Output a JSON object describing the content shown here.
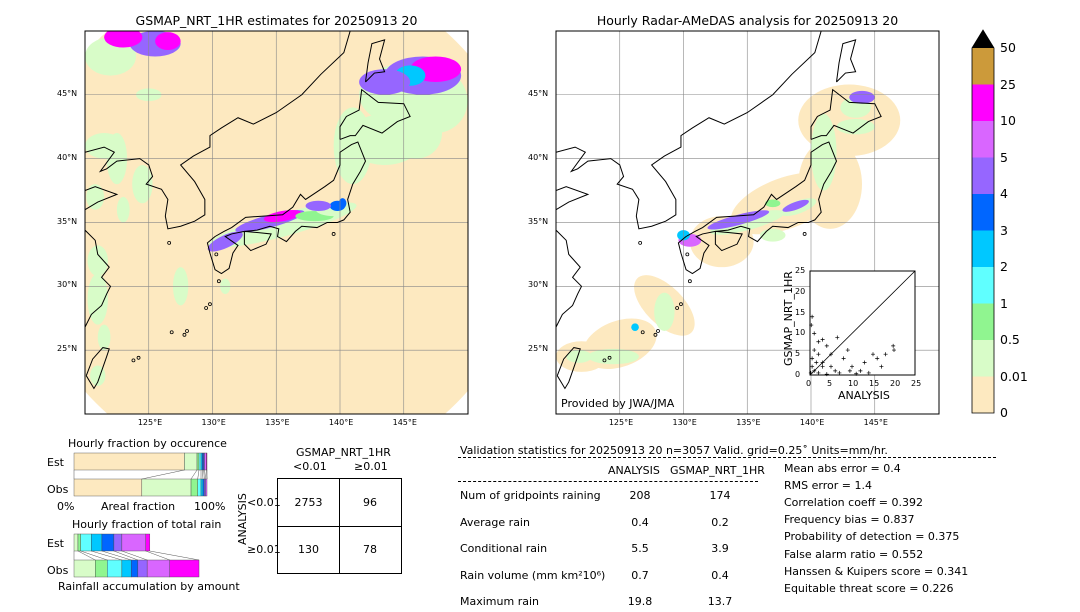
{
  "left_map": {
    "title": "GSMAP_NRT_1HR estimates for 20250913 20",
    "lon_ticks": [
      "125°E",
      "130°E",
      "135°E",
      "140°E",
      "145°E"
    ],
    "lat_ticks": [
      "45°N",
      "40°N",
      "35°N",
      "30°N",
      "25°N"
    ],
    "extent": {
      "lon": [
        120,
        150
      ],
      "lat": [
        20,
        50
      ]
    }
  },
  "right_map": {
    "title": "Hourly Radar-AMeDAS analysis for 20250913 20",
    "lon_ticks": [
      "125°E",
      "130°E",
      "135°E",
      "140°E",
      "145°E"
    ],
    "lat_ticks": [
      "45°N",
      "40°N",
      "35°N",
      "30°N",
      "25°N"
    ],
    "credit": "Provided by JWA/JMA"
  },
  "colorbar": {
    "labels": [
      "0",
      "0.01",
      "0.5",
      "1",
      "2",
      "3",
      "4",
      "5",
      "10",
      "25",
      "50"
    ],
    "colors": [
      "#fde9c0",
      "#d8fcc8",
      "#90f590",
      "#60ffff",
      "#00c8ff",
      "#0066ff",
      "#9666ff",
      "#d966ff",
      "#ff00ff",
      "#cc9a3a"
    ],
    "extend_color": "#000000"
  },
  "chart_data": [
    {
      "type": "scatter",
      "xlabel": "ANALYSIS",
      "ylabel": "GSMAP_NRT_1HR",
      "xlim": [
        0,
        25
      ],
      "ylim": [
        0,
        25
      ],
      "ticks": [
        "0",
        "5",
        "10",
        "15",
        "20",
        "25"
      ],
      "points": [
        [
          0.5,
          14
        ],
        [
          0.3,
          12
        ],
        [
          1,
          10
        ],
        [
          2,
          8
        ],
        [
          3,
          8.5
        ],
        [
          4,
          7
        ],
        [
          1,
          6
        ],
        [
          2,
          5
        ],
        [
          0.5,
          4
        ],
        [
          1.5,
          3
        ],
        [
          3,
          2
        ],
        [
          5,
          2
        ],
        [
          6,
          1
        ],
        [
          8,
          4
        ],
        [
          9,
          6
        ],
        [
          10,
          2
        ],
        [
          12,
          1
        ],
        [
          14,
          0.5
        ],
        [
          15,
          5
        ],
        [
          16,
          4
        ],
        [
          18,
          5
        ],
        [
          19.8,
          7
        ],
        [
          17,
          2
        ],
        [
          11,
          0.3
        ],
        [
          7,
          0.5
        ],
        [
          4,
          0.2
        ],
        [
          2,
          0.5
        ],
        [
          1,
          1
        ],
        [
          0.5,
          2
        ],
        [
          0.2,
          0.5
        ],
        [
          3,
          3
        ],
        [
          5,
          5
        ],
        [
          6.5,
          9
        ],
        [
          13,
          3
        ],
        [
          9.5,
          1
        ],
        [
          20,
          6
        ]
      ]
    },
    {
      "type": "bar",
      "title": "Hourly fraction by occurence",
      "xlabel": "Areal fraction",
      "x_ticks": [
        "0%",
        "100%"
      ],
      "categories": [
        "Est",
        "Obs"
      ],
      "segments_percent": {
        "Est": [
          83,
          9.5,
          1.5,
          1.5,
          1,
          1,
          0.7,
          1.3,
          0.5
        ],
        "Obs": [
          51,
          37,
          5,
          2.5,
          1.5,
          1,
          1,
          1,
          0
        ]
      }
    },
    {
      "type": "bar",
      "title": "Hourly fraction of total rain",
      "xlabel": "Rainfall accumulation by amount",
      "categories": [
        "Est",
        "Obs"
      ],
      "segments_percent": {
        "Est": [
          3,
          2,
          8,
          8,
          9,
          6,
          18,
          3
        ],
        "Obs": [
          16,
          9,
          11,
          7,
          5,
          7,
          17,
          22
        ]
      }
    }
  ],
  "contingency": {
    "title": "GSMAP_NRT_1HR",
    "col_labels": [
      "<0.01",
      "≥0.01"
    ],
    "row_axis": "ANALYSIS",
    "row_labels": [
      "<0.01",
      "≥0.01"
    ],
    "cells": [
      [
        "2753",
        "96"
      ],
      [
        "130",
        "78"
      ]
    ]
  },
  "stats": {
    "header": "Validation statistics for 20250913 20  n=3057 Valid. grid=0.25˚ Units=mm/hr.",
    "col_headers": [
      "ANALYSIS",
      "GSMAP_NRT_1HR"
    ],
    "rows": [
      {
        "label": "Num of gridpoints raining",
        "a": "208",
        "g": "174"
      },
      {
        "label": "Average rain",
        "a": "0.4",
        "g": "0.2"
      },
      {
        "label": "Conditional rain",
        "a": "5.5",
        "g": "3.9"
      },
      {
        "label": "Rain volume (mm km²10⁶)",
        "a": "0.7",
        "g": "0.4"
      },
      {
        "label": "Maximum rain",
        "a": "19.8",
        "g": "13.7"
      }
    ],
    "scores": [
      "Mean abs error =    0.4",
      "RMS error =    1.4",
      "Correlation coeff =  0.392",
      "Frequency bias =  0.837",
      "Probability of detection =  0.375",
      "False alarm ratio =  0.552",
      "Hanssen & Kuipers score =  0.341",
      "Equitable threat score =  0.226"
    ]
  }
}
